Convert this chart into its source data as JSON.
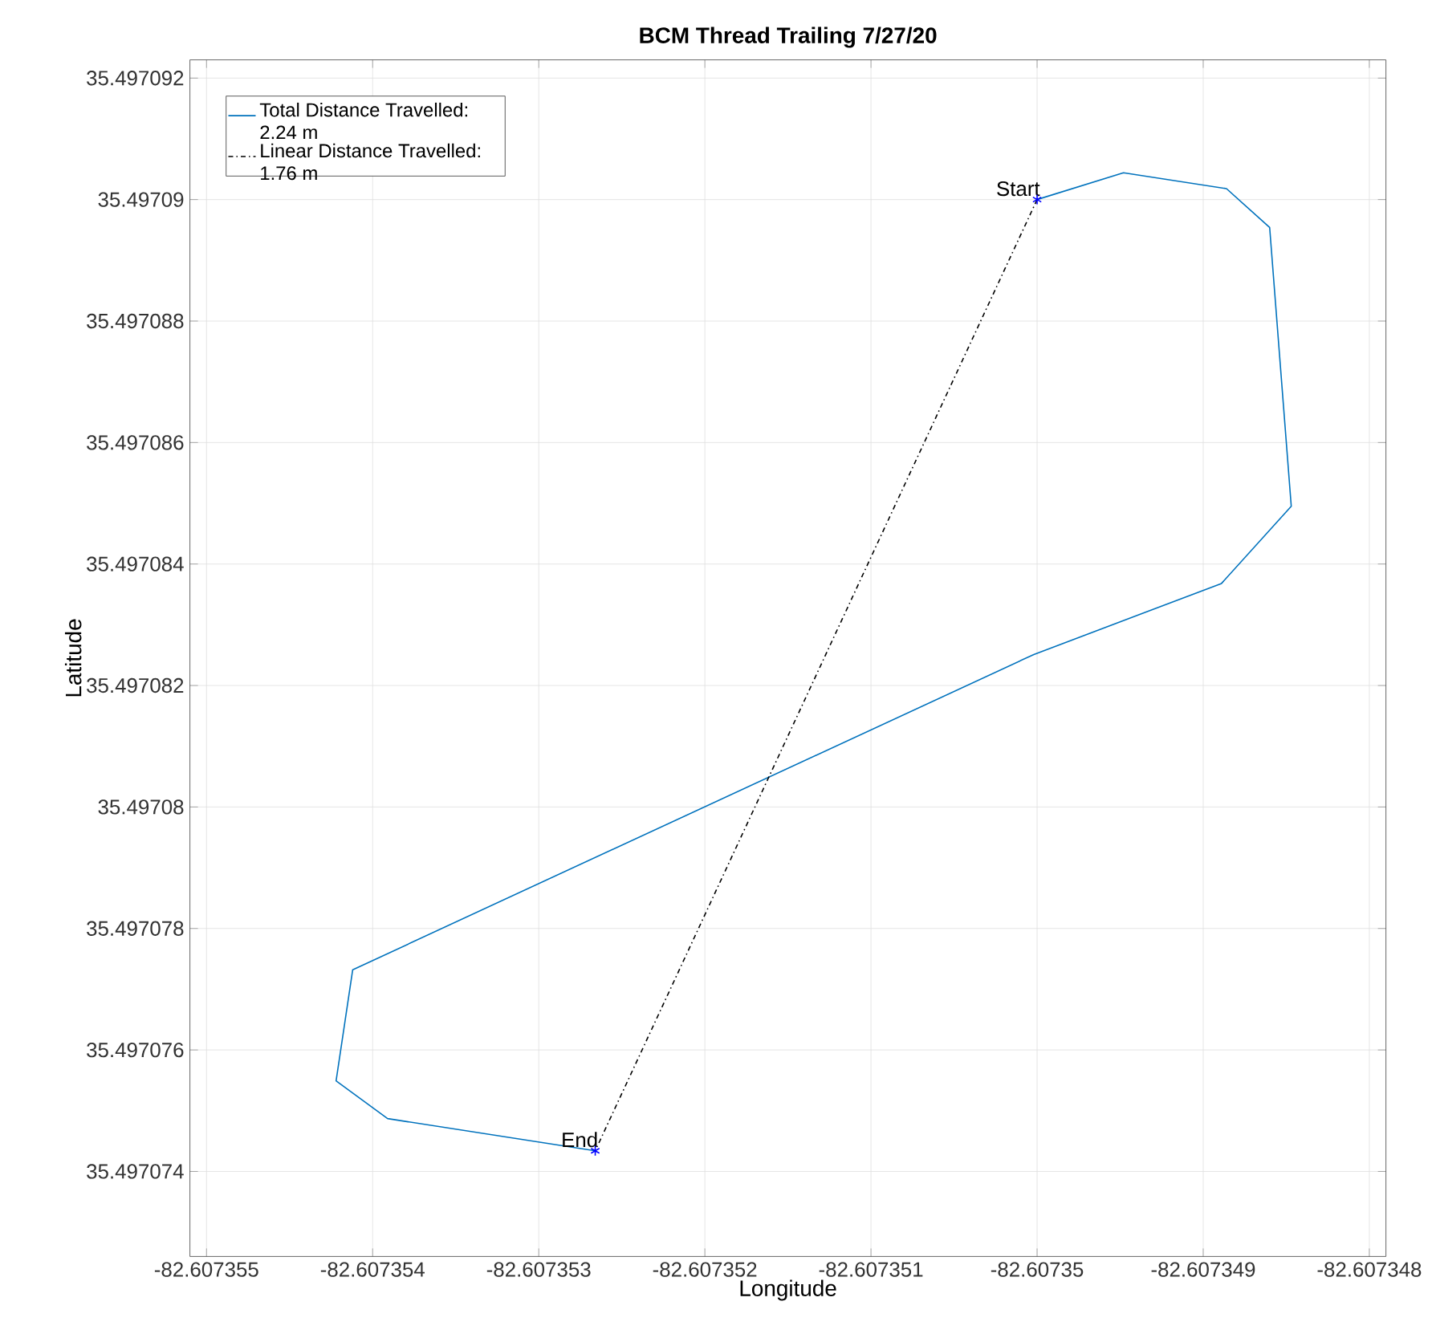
{
  "chart_data": {
    "type": "line",
    "title": "BCM Thread Trailing 7/27/20",
    "xlabel": "Longitude",
    "ylabel": "Latitude",
    "series": [
      {
        "name": "Total Distance Travelled: 2.24 m",
        "color": "#0072bd",
        "line_style": "solid",
        "x": [
          -82.60735,
          -82.60734948,
          -82.60734886,
          -82.6073486,
          -82.60734847,
          -82.60734889,
          -82.60735002,
          -82.60735412,
          -82.60735422,
          -82.60735391,
          -82.60735266
        ],
        "values": [
          35.49709,
          35.49709044,
          35.49709018,
          35.49708954,
          35.49708495,
          35.49708368,
          35.49708251,
          35.49707732,
          35.49707549,
          35.49707487,
          35.49707434
        ]
      },
      {
        "name": "Linear Distance Travelled: 1.76 m",
        "color": "#000000",
        "line_style": "dashdot",
        "x": [
          -82.60735,
          -82.60735266
        ],
        "values": [
          35.49709,
          35.49707434
        ]
      },
      {
        "color": "#0000ff",
        "type": "scatter",
        "marker": "cross",
        "x": [
          -82.60735,
          -82.60735266
        ],
        "values": [
          35.49709,
          35.49707434
        ]
      }
    ],
    "annotations": [
      {
        "text": "Start",
        "x": -82.60735,
        "y": 35.49709
      },
      {
        "text": "End",
        "x": -82.60735266,
        "y": 35.49707434
      }
    ],
    "xlim": [
      -82.6073551,
      -82.6073479
    ],
    "ylim": [
      35.4970726,
      35.4970923
    ],
    "xticks": [
      -82.607355,
      -82.607354,
      -82.607353,
      -82.607352,
      -82.607351,
      -82.60735,
      -82.607349,
      -82.607348
    ],
    "yticks": [
      35.497074,
      35.497076,
      35.497078,
      35.49708,
      35.497082,
      35.497084,
      35.497086,
      35.497088,
      35.49709,
      35.497092
    ],
    "grid": true,
    "legend": "top left"
  }
}
